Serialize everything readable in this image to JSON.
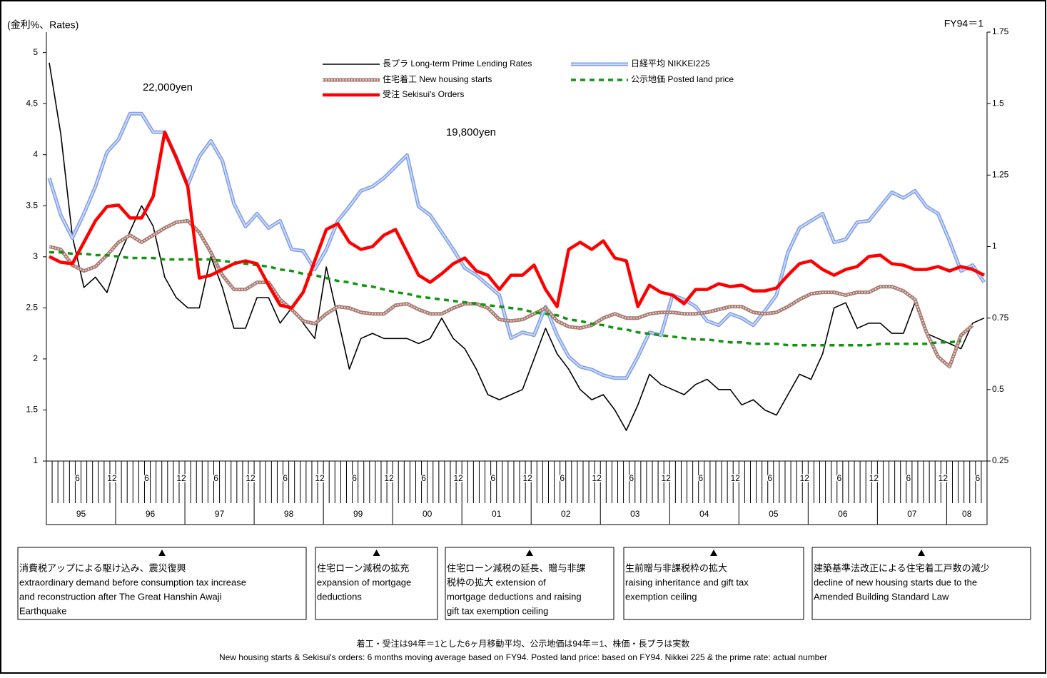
{
  "chart_data": {
    "type": "line",
    "left_axis_label": "(金利%、Rates)",
    "right_axis_label": "FY94＝1",
    "categories": [
      "1995-01",
      "1995-03",
      "1995-05",
      "1995-07",
      "1995-09",
      "1995-11",
      "1996-01",
      "1996-03",
      "1996-05",
      "1996-07",
      "1996-09",
      "1996-11",
      "1997-01",
      "1997-03",
      "1997-05",
      "1997-07",
      "1997-09",
      "1997-11",
      "1998-01",
      "1998-03",
      "1998-05",
      "1998-07",
      "1998-09",
      "1998-11",
      "1999-01",
      "1999-03",
      "1999-05",
      "1999-07",
      "1999-09",
      "1999-11",
      "2000-01",
      "2000-03",
      "2000-05",
      "2000-07",
      "2000-09",
      "2000-11",
      "2001-01",
      "2001-03",
      "2001-05",
      "2001-07",
      "2001-09",
      "2001-11",
      "2002-01",
      "2002-03",
      "2002-05",
      "2002-07",
      "2002-09",
      "2002-11",
      "2003-01",
      "2003-03",
      "2003-05",
      "2003-07",
      "2003-09",
      "2003-11",
      "2004-01",
      "2004-03",
      "2004-05",
      "2004-07",
      "2004-09",
      "2004-11",
      "2005-01",
      "2005-03",
      "2005-05",
      "2005-07",
      "2005-09",
      "2005-11",
      "2006-01",
      "2006-03",
      "2006-05",
      "2006-07",
      "2006-09",
      "2006-11",
      "2007-01",
      "2007-03",
      "2007-05",
      "2007-07",
      "2007-09",
      "2007-11",
      "2008-01",
      "2008-03",
      "2008-05",
      "2008-07"
    ],
    "xlim": [
      "1995-01",
      "2008-07"
    ],
    "xtick_months": [
      6,
      12
    ],
    "year_labels": [
      "95",
      "96",
      "97",
      "98",
      "99",
      "00",
      "01",
      "02",
      "03",
      "04",
      "05",
      "06",
      "07",
      "08"
    ],
    "ylim": [
      1,
      5.2
    ],
    "yticks": [
      1,
      1.5,
      2,
      2.5,
      3,
      3.5,
      4,
      4.5,
      5
    ],
    "y2lim": [
      0.25,
      1.75
    ],
    "y2ticks": [
      0.25,
      0.5,
      0.75,
      1,
      1.25,
      1.5,
      1.75
    ],
    "series": [
      {
        "name": "長プラ  Long-term Prime Lending Rates",
        "color": "#000000",
        "style": "solid",
        "axis": "y",
        "values": [
          4.9,
          4.2,
          3.2,
          2.7,
          2.8,
          2.65,
          3.0,
          3.25,
          3.5,
          3.3,
          2.8,
          2.6,
          2.5,
          2.5,
          3.0,
          2.7,
          2.3,
          2.3,
          2.6,
          2.6,
          2.35,
          2.5,
          2.35,
          2.2,
          2.9,
          2.4,
          1.9,
          2.2,
          2.25,
          2.2,
          2.2,
          2.2,
          2.15,
          2.2,
          2.4,
          2.2,
          2.1,
          1.9,
          1.65,
          1.6,
          1.65,
          1.7,
          2.0,
          2.3,
          2.05,
          1.9,
          1.7,
          1.6,
          1.65,
          1.5,
          1.3,
          1.55,
          1.85,
          1.75,
          1.7,
          1.65,
          1.75,
          1.8,
          1.7,
          1.7,
          1.55,
          1.6,
          1.5,
          1.45,
          1.65,
          1.85,
          1.8,
          2.05,
          2.5,
          2.55,
          2.3,
          2.35,
          2.35,
          2.25,
          2.25,
          2.55,
          2.25,
          2.2,
          2.15,
          2.1,
          2.35,
          2.4
        ]
      },
      {
        "name": "日経平均  NIKKEI225",
        "color": "#7f9fe6",
        "style": "double",
        "axis": "y2",
        "values": [
          1.24,
          1.11,
          1.03,
          1.115,
          1.21,
          1.33,
          1.375,
          1.465,
          1.465,
          1.4,
          1.4,
          1.315,
          1.215,
          1.315,
          1.37,
          1.3,
          1.15,
          1.07,
          1.115,
          1.065,
          1.09,
          0.99,
          0.985,
          0.92,
          0.99,
          1.09,
          1.14,
          1.195,
          1.21,
          1.24,
          1.28,
          1.32,
          1.14,
          1.11,
          1.05,
          0.99,
          0.925,
          0.9,
          0.865,
          0.83,
          0.68,
          0.7,
          0.69,
          0.79,
          0.69,
          0.615,
          0.58,
          0.57,
          0.55,
          0.54,
          0.54,
          0.615,
          0.7,
          0.69,
          0.83,
          0.815,
          0.79,
          0.74,
          0.725,
          0.765,
          0.75,
          0.725,
          0.775,
          0.83,
          0.98,
          1.065,
          1.09,
          1.115,
          1.015,
          1.025,
          1.085,
          1.09,
          1.14,
          1.19,
          1.17,
          1.195,
          1.14,
          1.115,
          1.02,
          0.915,
          0.935,
          0.875
        ]
      },
      {
        "name": "住宅着工 New housing starts",
        "color": "#a87a70",
        "style": "hatched",
        "axis": "y2",
        "values": [
          1.0,
          0.99,
          0.935,
          0.915,
          0.93,
          0.97,
          1.015,
          1.04,
          1.015,
          1.04,
          1.065,
          1.085,
          1.09,
          1.05,
          0.98,
          0.9,
          0.85,
          0.85,
          0.875,
          0.875,
          0.815,
          0.78,
          0.74,
          0.73,
          0.765,
          0.79,
          0.785,
          0.77,
          0.765,
          0.765,
          0.795,
          0.8,
          0.78,
          0.765,
          0.765,
          0.785,
          0.8,
          0.8,
          0.785,
          0.745,
          0.74,
          0.745,
          0.765,
          0.785,
          0.74,
          0.72,
          0.715,
          0.725,
          0.75,
          0.765,
          0.75,
          0.75,
          0.765,
          0.77,
          0.77,
          0.765,
          0.765,
          0.77,
          0.78,
          0.79,
          0.79,
          0.77,
          0.765,
          0.77,
          0.79,
          0.815,
          0.835,
          0.84,
          0.84,
          0.83,
          0.84,
          0.84,
          0.86,
          0.86,
          0.845,
          0.815,
          0.7,
          0.615,
          0.58,
          0.69,
          0.725,
          null
        ]
      },
      {
        "name": "公示地価  Posted land price",
        "color": "#129412",
        "style": "dashed",
        "axis": "y2",
        "values": [
          0.98,
          0.98,
          0.975,
          0.975,
          0.97,
          0.97,
          0.965,
          0.96,
          0.96,
          0.96,
          0.955,
          0.955,
          0.955,
          0.955,
          0.955,
          0.95,
          0.945,
          0.94,
          0.935,
          0.93,
          0.92,
          0.915,
          0.905,
          0.9,
          0.89,
          0.88,
          0.875,
          0.865,
          0.86,
          0.85,
          0.84,
          0.835,
          0.825,
          0.82,
          0.815,
          0.81,
          0.805,
          0.8,
          0.795,
          0.79,
          0.785,
          0.78,
          0.77,
          0.765,
          0.76,
          0.745,
          0.74,
          0.73,
          0.725,
          0.715,
          0.71,
          0.7,
          0.695,
          0.69,
          0.685,
          0.68,
          0.675,
          0.675,
          0.67,
          0.665,
          0.665,
          0.66,
          0.66,
          0.66,
          0.655,
          0.655,
          0.655,
          0.655,
          0.655,
          0.655,
          0.655,
          0.655,
          0.66,
          0.66,
          0.66,
          0.66,
          0.66,
          0.665,
          0.665,
          0.67,
          null,
          null
        ]
      },
      {
        "name": "受注 Sekisui's Orders",
        "color": "#ff0000",
        "style": "thick",
        "axis": "y2",
        "values": [
          0.965,
          0.945,
          0.94,
          1.015,
          1.09,
          1.14,
          1.145,
          1.1,
          1.1,
          1.175,
          1.4,
          1.31,
          1.21,
          0.89,
          0.9,
          0.92,
          0.94,
          0.95,
          0.94,
          0.865,
          0.795,
          0.785,
          0.84,
          0.95,
          1.06,
          1.08,
          1.015,
          0.99,
          1.0,
          1.04,
          1.06,
          0.98,
          0.9,
          0.875,
          0.905,
          0.94,
          0.96,
          0.915,
          0.9,
          0.85,
          0.9,
          0.9,
          0.935,
          0.85,
          0.79,
          0.99,
          1.015,
          0.99,
          1.02,
          0.96,
          0.95,
          0.79,
          0.865,
          0.84,
          0.83,
          0.8,
          0.85,
          0.85,
          0.87,
          0.86,
          0.865,
          0.845,
          0.845,
          0.855,
          0.9,
          0.94,
          0.95,
          0.92,
          0.9,
          0.92,
          0.93,
          0.965,
          0.97,
          0.94,
          0.935,
          0.92,
          0.92,
          0.93,
          0.915,
          0.93,
          0.92,
          0.9
        ]
      }
    ],
    "annotations": [
      "22,000yen",
      "19,800yen"
    ],
    "notes": [
      {
        "lines": [
          "消費税アップによる駆け込み、震災復興",
          "extraordinary demand before consumption tax increase",
          "and reconstruction after The Great Hanshin Awaji",
          "Earthquake"
        ]
      },
      {
        "lines": [
          "住宅ローン減税の拡充",
          "expansion of mortgage",
          "deductions"
        ]
      },
      {
        "lines": [
          "住宅ローン減税の延長、贈与非課",
          "税枠の拡大  extension of",
          "mortgage deductions and raising",
          "gift tax exemption ceiling"
        ]
      },
      {
        "lines": [
          "生前贈与非課税枠の拡大",
          " raising inheritance and gift tax",
          "exemption ceiling"
        ]
      },
      {
        "lines": [
          "建築基準法改正による住宅着工戸数の減少",
          "decline of new housing starts due to the",
          "Amended Building Standard Law"
        ]
      }
    ],
    "footnotes": [
      "着工・受注は94年＝1とした6ヶ月移動平均、公示地価は94年＝1、株価・長プラは実数",
      "New housing starts & Sekisui's orders: 6 months moving average based on FY94. Posted land price: based on FY94.  Nikkei 225 & the prime rate: actual number"
    ]
  }
}
